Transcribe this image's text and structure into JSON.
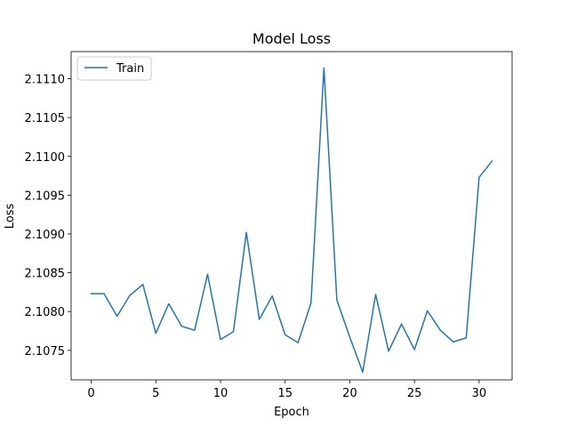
{
  "chart_data": {
    "type": "line",
    "title": "Model Loss",
    "xlabel": "Epoch",
    "ylabel": "Loss",
    "xlim": [
      -1.55,
      32.55
    ],
    "ylim": [
      2.10712,
      2.11135
    ],
    "xticks": [
      0,
      5,
      10,
      15,
      20,
      25,
      30
    ],
    "yticks": [
      2.1075,
      2.108,
      2.1085,
      2.109,
      2.1095,
      2.11,
      2.1105,
      2.111
    ],
    "ytick_decimals": 4,
    "grid": false,
    "legend_position": "top-left",
    "series": [
      {
        "name": "Train",
        "color": "#1f77b4",
        "x": [
          0,
          1,
          2,
          3,
          4,
          5,
          6,
          7,
          8,
          9,
          10,
          11,
          12,
          13,
          14,
          15,
          16,
          17,
          18,
          19,
          20,
          21,
          22,
          23,
          24,
          25,
          26,
          27,
          28,
          29,
          30,
          31
        ],
        "values": [
          2.10823,
          2.10823,
          2.10794,
          2.10821,
          2.10835,
          2.10772,
          2.1081,
          2.10781,
          2.10776,
          2.10848,
          2.10764,
          2.10774,
          2.10902,
          2.1079,
          2.1082,
          2.1077,
          2.1076,
          2.10811,
          2.11114,
          2.10815,
          2.10767,
          2.10722,
          2.10822,
          2.10749,
          2.10784,
          2.10751,
          2.10801,
          2.10776,
          2.10761,
          2.10766,
          2.10973,
          2.10994
        ]
      }
    ]
  }
}
